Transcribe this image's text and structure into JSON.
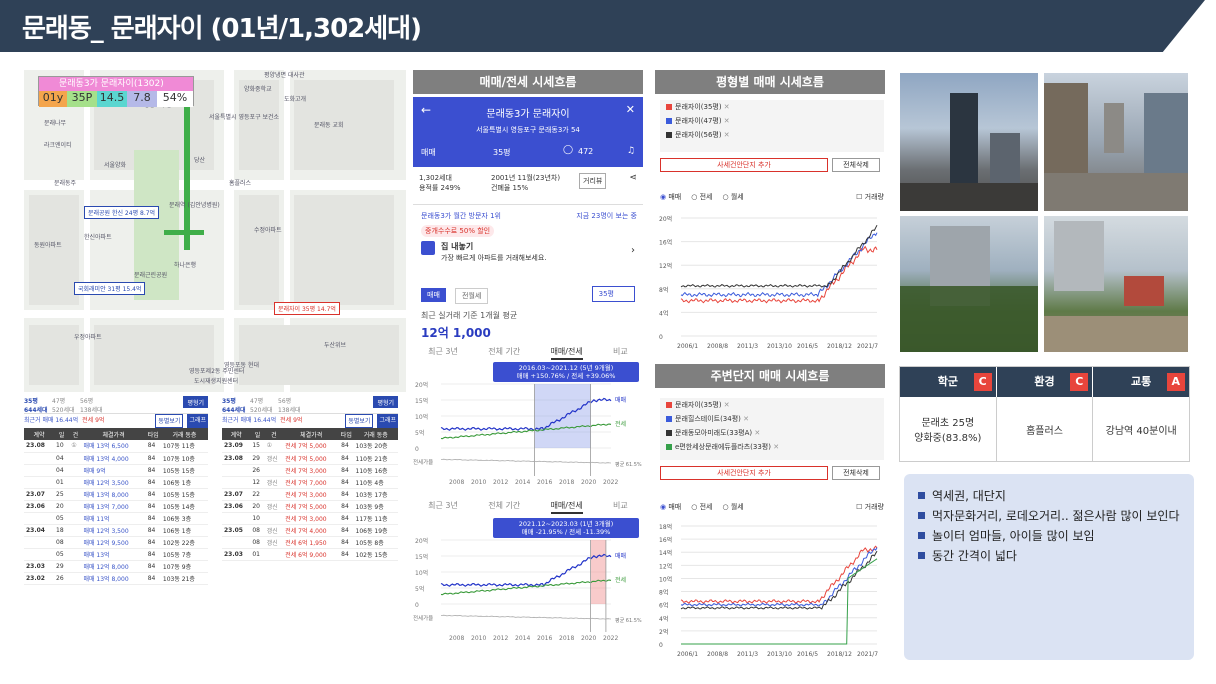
{
  "header": {
    "title": "문래동_ 문래자이 (01년/1,302세대)"
  },
  "map": {
    "apt_box": {
      "name": "문래동3가 문래자이(1302)",
      "age": "01y",
      "far": "35P",
      "v1": "14.5",
      "v2": "7.8",
      "pct": "54%"
    },
    "labels": [
      "평양냉면 대사관",
      "양화중학교",
      "도화고개",
      "문래나무",
      "영등포구청",
      "서울특별시 영등포구 보건소",
      "문래동 교회",
      "당산",
      "라크엔이티",
      "문래동주",
      "서울양화",
      "문래공원 한신 24평 8.7억",
      "한신아파트",
      "동원아파트",
      "문래역 (김안녕병원)",
      "홈플러스",
      "수정아파트",
      "하나은행",
      "국회래미안 31평 15.4억",
      "문래자이 35평 14.7억",
      "문래근린공원",
      "두산위브",
      "우정아파트",
      "영등포동 현대",
      "도시재생지원센터",
      "영등포제2동 주민센터"
    ]
  },
  "left_tables": {
    "a": {
      "tab1": "35평",
      "tab1_sub": "644세대",
      "tab2": "47평",
      "tab2_sub": "520세대",
      "tab3": "56평",
      "tab3_sub": "138세대",
      "btn": "평형기",
      "summary": "최근거 매매 16.44억",
      "summary2": "전세 9억",
      "btn1": "동별보기",
      "btn2": "그래프",
      "cols": [
        "계약",
        "일",
        "건",
        "체결가격",
        "타입",
        "거래 동층"
      ],
      "rows": [
        [
          "23.08",
          "10",
          "①",
          "매매 13억 6,500",
          "84",
          "107동 11층"
        ],
        [
          "",
          "04",
          "",
          "매매 13억 4,000",
          "84",
          "107동 10층"
        ],
        [
          "",
          "04",
          "",
          "매매 9억",
          "84",
          "105동 15층"
        ],
        [
          "",
          "01",
          "",
          "매매 12억 3,500",
          "84",
          "106동 1층"
        ],
        [
          "23.07",
          "25",
          "",
          "매매 13억 8,000",
          "84",
          "105동 15층"
        ],
        [
          "23.06",
          "20",
          "",
          "매매 13억 7,000",
          "84",
          "105동 14층"
        ],
        [
          "",
          "05",
          "",
          "매매 11억",
          "84",
          "106동 3층"
        ],
        [
          "23.04",
          "18",
          "",
          "매매 12억 3,500",
          "84",
          "106동 1층"
        ],
        [
          "",
          "08",
          "",
          "매매 12억 9,500",
          "84",
          "102동 22층"
        ],
        [
          "",
          "05",
          "",
          "매매 13억",
          "84",
          "105동 7층"
        ],
        [
          "23.03",
          "29",
          "",
          "매매 12억 8,000",
          "84",
          "107동 9층"
        ],
        [
          "23.02",
          "26",
          "",
          "매매 13억 8,000",
          "84",
          "103동 21층"
        ]
      ]
    },
    "b": {
      "rows": [
        [
          "23.09",
          "15",
          "①",
          "전세 7억 5,000",
          "84",
          "103동 20층"
        ],
        [
          "23.08",
          "29",
          "갱신",
          "전세 7억 5,000",
          "84",
          "110동 21층"
        ],
        [
          "",
          "26",
          "",
          "전세 7억 3,000",
          "84",
          "110동 16층"
        ],
        [
          "",
          "12",
          "갱신",
          "전세 7억 7,000",
          "84",
          "110동 4층"
        ],
        [
          "23.07",
          "22",
          "",
          "전세 7억 3,000",
          "84",
          "103동 17층"
        ],
        [
          "23.06",
          "20",
          "갱신",
          "전세 7억 5,000",
          "84",
          "103동 9층"
        ],
        [
          "",
          "10",
          "",
          "전세 7억 3,000",
          "84",
          "117동 11층"
        ],
        [
          "23.05",
          "08",
          "갱신",
          "전세 7억 4,000",
          "84",
          "106동 19층"
        ],
        [
          "",
          "08",
          "갱신",
          "전세 6억 1,950",
          "84",
          "105동 8층"
        ],
        [
          "23.03",
          "01",
          "",
          "전세 6억 9,000",
          "84",
          "102동 15층"
        ]
      ]
    }
  },
  "trade_panel": {
    "title": "매매/전세 시세흐름",
    "app_title": "문래동3가 문래자이",
    "app_sub": "서울특별시 영등포구 문래동3가 54",
    "filter1": "매매",
    "filter2": "35평",
    "comments": "472",
    "info1": "1,302세대",
    "info2": "2001년 11월(23년차)",
    "info3": "용적률 249%",
    "info4": "건폐율 15%",
    "review_btn": "거리뷰",
    "visitors": "문래동3가 월간 방문자 1위",
    "visitors2": "지금 23명이 보는 중",
    "promo": "중개수수료 50% 할인",
    "sell": "집 내놓기",
    "sell_sub": "가장 빠르게 아파트를 거래해보세요.",
    "tab_buy": "매매",
    "tab_rent": "전월세",
    "size_sel": "35평",
    "recent_label": "최근 실거래 기준 1개월 평균",
    "recent_price": "12억 1,000",
    "tabs": [
      "최근 3년",
      "전체 기간",
      "매매/전세",
      "비교"
    ],
    "box1_title": "2016.03~2021.12 (5년 9개월)",
    "box1_sub": "매매 +150.76% / 전세 +39.06%",
    "box2_title": "2021.12~2023.03 (1년 3개월)",
    "box2_sub": "매매 -21.95% / 전세 -11.39%",
    "y_ticks": [
      "20억",
      "15억",
      "10억",
      "5억",
      "0"
    ],
    "x_ticks": [
      "2008",
      "2010",
      "2012",
      "2014",
      "2016",
      "2018",
      "2020",
      "2022"
    ],
    "legend_sell": "매매",
    "legend_rent": "전세",
    "bottom_label": "전세가율",
    "ratio": "평균 61.5%"
  },
  "pyeong_panel": {
    "title": "평형별 매매 시세흐름",
    "legend": [
      {
        "name": "문래자이(35평)",
        "color": "#e8453c"
      },
      {
        "name": "문래자이(47평)",
        "color": "#3b5bdb"
      },
      {
        "name": "문래자이(56평)",
        "color": "#333333"
      }
    ],
    "add_btn": "사세건안단지 추가",
    "del_btn": "전체삭제",
    "radio": [
      "매매",
      "전세",
      "월세"
    ],
    "check": "거래량",
    "y_ticks": [
      "20억",
      "16억",
      "12억",
      "8억",
      "4억",
      "0"
    ],
    "x_ticks": [
      "2006/1",
      "2008/8",
      "2011/3",
      "2013/10",
      "2016/5",
      "2018/12",
      "2021/7"
    ]
  },
  "nearby_panel": {
    "title": "주변단지 매매 시세흐름",
    "legend": [
      {
        "name": "문래자이(35평)",
        "color": "#e8453c"
      },
      {
        "name": "문래힐스테이트(34평)",
        "color": "#3b5bdb"
      },
      {
        "name": "문래동모아미래도(33평A)",
        "color": "#333333"
      },
      {
        "name": "e편한세상문래에듀플라츠(33평)",
        "color": "#35a04a"
      }
    ],
    "add_btn": "사세건안단지 추가",
    "del_btn": "전체삭제",
    "radio": [
      "매매",
      "전세",
      "월세"
    ],
    "check": "거래량",
    "y_ticks": [
      "18억",
      "16억",
      "14억",
      "12억",
      "10억",
      "8억",
      "6억",
      "4억",
      "2억",
      "0"
    ],
    "x_ticks": [
      "2006/1",
      "2008/8",
      "2011/3",
      "2013/10",
      "2016/5",
      "2018/12",
      "2021/7"
    ]
  },
  "grades": {
    "headers": [
      {
        "label": "학군",
        "grade": "C"
      },
      {
        "label": "환경",
        "grade": "C"
      },
      {
        "label": "교통",
        "grade": "A"
      }
    ],
    "values": [
      "문래초 25명\n양화중(83.8%)",
      "홈플러스",
      "강남역 40분이내"
    ],
    "grade_color": "#e8453c"
  },
  "notes": [
    "역세권, 대단지",
    "먹자문화거리, 로데오거리.. 젊은사람 많이 보인다",
    "놀이터 엄마들, 아이들 많이 보임",
    "동간 간격이 넓다"
  ]
}
